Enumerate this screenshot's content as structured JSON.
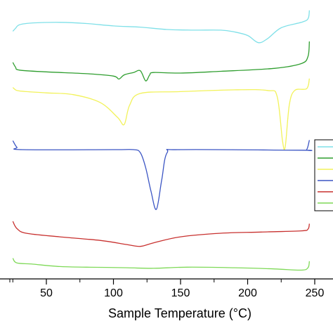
{
  "chart_data": {
    "type": "line",
    "title": "",
    "xlabel": "Sample Temperature (°C)",
    "ylabel": "",
    "xlim": [
      25,
      250
    ],
    "x_ticks": [
      50,
      100,
      150,
      200,
      250
    ],
    "x_minor_ticks": [
      25,
      75,
      125,
      175,
      225
    ],
    "y_unit": "relative heat flow (offset, unlabeled)",
    "legend": {
      "placement": "right",
      "entries": [
        {
          "color": "#7fe0e8",
          "label": ""
        },
        {
          "color": "#2f9e2f",
          "label": ""
        },
        {
          "color": "#f2f25a",
          "label": ""
        },
        {
          "color": "#3b55c4",
          "label": ""
        },
        {
          "color": "#c8312f",
          "label": ""
        },
        {
          "color": "#7ed957",
          "label": ""
        }
      ]
    },
    "series": [
      {
        "color": "#7fe0e8",
        "points": [
          [
            25,
            -0.3
          ],
          [
            27,
            0.2
          ],
          [
            30,
            0.8
          ],
          [
            40,
            1.1
          ],
          [
            60,
            1.2
          ],
          [
            80,
            1.0
          ],
          [
            100,
            0.6
          ],
          [
            120,
            0.4
          ],
          [
            140,
            0.0
          ],
          [
            160,
            -0.1
          ],
          [
            180,
            -0.1
          ],
          [
            190,
            -0.4
          ],
          [
            200,
            -1.0
          ],
          [
            208,
            -2.2
          ],
          [
            215,
            -1.5
          ],
          [
            225,
            0.3
          ],
          [
            240,
            1.2
          ],
          [
            245,
            1.8
          ],
          [
            246,
            3.2
          ]
        ]
      },
      {
        "color": "#2f9e2f",
        "points": [
          [
            25,
            0.5
          ],
          [
            27,
            -0.3
          ],
          [
            30,
            -0.8
          ],
          [
            50,
            -1.1
          ],
          [
            80,
            -1.4
          ],
          [
            100,
            -1.8
          ],
          [
            104,
            -2.3
          ],
          [
            108,
            -1.6
          ],
          [
            115,
            -1.2
          ],
          [
            120,
            -0.9
          ],
          [
            124,
            -2.6
          ],
          [
            127,
            -1.6
          ],
          [
            130,
            -1.2
          ],
          [
            150,
            -1.3
          ],
          [
            180,
            -1.0
          ],
          [
            220,
            -0.5
          ],
          [
            240,
            0.3
          ],
          [
            245,
            1.5
          ],
          [
            246,
            4.0
          ]
        ]
      },
      {
        "color": "#f2f25a",
        "points": [
          [
            25,
            1.0
          ],
          [
            28,
            0.5
          ],
          [
            35,
            0.3
          ],
          [
            50,
            0.1
          ],
          [
            70,
            -0.2
          ],
          [
            90,
            -1.5
          ],
          [
            103,
            -4.0
          ],
          [
            108,
            -5.2
          ],
          [
            112,
            -2.0
          ],
          [
            120,
            0.0
          ],
          [
            150,
            0.3
          ],
          [
            190,
            0.6
          ],
          [
            215,
            0.5
          ],
          [
            222,
            -0.5
          ],
          [
            226,
            -8.0
          ],
          [
            228,
            -8.9
          ],
          [
            231,
            -2.0
          ],
          [
            235,
            0.5
          ],
          [
            244,
            0.8
          ],
          [
            246,
            2.5
          ]
        ]
      },
      {
        "color": "#3b55c4",
        "points": [
          [
            25,
            1.5
          ],
          [
            28,
            0.4
          ],
          [
            32,
            0.0
          ],
          [
            100,
            0.0
          ],
          [
            115,
            0.0
          ],
          [
            120,
            -0.5
          ],
          [
            124,
            -3.0
          ],
          [
            128,
            -7.0
          ],
          [
            132,
            -10.0
          ],
          [
            136,
            -5.0
          ],
          [
            140,
            -0.5
          ],
          [
            150,
            0.0
          ],
          [
            240,
            -0.1
          ],
          [
            244,
            0.0
          ],
          [
            246,
            1.6
          ]
        ]
      },
      {
        "color": "#c8312f",
        "points": [
          [
            25,
            2.0
          ],
          [
            28,
            0.8
          ],
          [
            35,
            0.0
          ],
          [
            60,
            -0.6
          ],
          [
            90,
            -1.2
          ],
          [
            110,
            -1.9
          ],
          [
            120,
            -2.2
          ],
          [
            130,
            -1.6
          ],
          [
            150,
            -0.6
          ],
          [
            180,
            0.0
          ],
          [
            210,
            0.2
          ],
          [
            240,
            0.4
          ],
          [
            245,
            0.7
          ],
          [
            246,
            1.6
          ]
        ]
      },
      {
        "color": "#7ed957",
        "points": [
          [
            25,
            1.0
          ],
          [
            28,
            0.2
          ],
          [
            40,
            0.0
          ],
          [
            60,
            -0.4
          ],
          [
            80,
            -0.5
          ],
          [
            110,
            -0.6
          ],
          [
            130,
            -0.7
          ],
          [
            155,
            -0.5
          ],
          [
            190,
            -0.6
          ],
          [
            220,
            -0.8
          ],
          [
            240,
            -1.0
          ],
          [
            245,
            -0.6
          ],
          [
            246,
            0.5
          ]
        ]
      }
    ]
  }
}
